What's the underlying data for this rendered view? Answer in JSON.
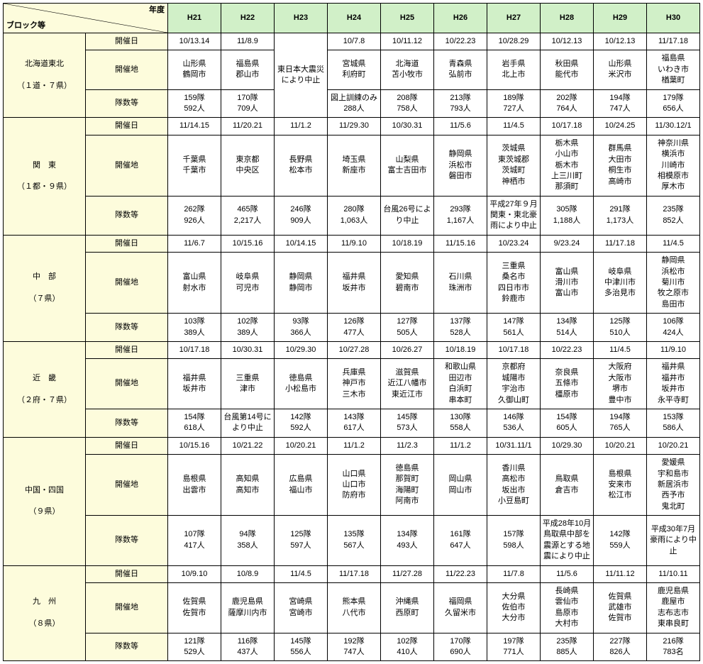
{
  "corner": {
    "top": "年度",
    "bottom": "ブロック等"
  },
  "years": [
    "H21",
    "H22",
    "H23",
    "H24",
    "H25",
    "H26",
    "H27",
    "H28",
    "H29",
    "H30"
  ],
  "rowLabels": [
    "開催日",
    "開催地",
    "隊数等"
  ],
  "blocks": [
    {
      "name": "北海道東北\n\n（１道・７県）",
      "merge23": true,
      "merge23Text": "東日本大震災により中止",
      "dates": [
        "10/13.14",
        "11/8.9",
        "",
        "10/7.8",
        "10/11.12",
        "10/22.23",
        "10/28.29",
        "10/12.13",
        "10/12.13",
        "11/17.18"
      ],
      "places": [
        "山形県\n鶴岡市",
        "福島県\n郡山市",
        "",
        "宮城県\n利府町",
        "北海道\n苫小牧市",
        "青森県\n弘前市",
        "岩手県\n北上市",
        "秋田県\n能代市",
        "山形県\n米沢市",
        "福島県\nいわき市\n楢葉町"
      ],
      "units": [
        "159隊\n592人",
        "170隊\n709人",
        "",
        "図上訓練のみ\n288人",
        "208隊\n758人",
        "213隊\n793人",
        "189隊\n727人",
        "202隊\n764人",
        "194隊\n747人",
        "179隊\n656人"
      ]
    },
    {
      "name": "関　東\n\n（１都・９県）",
      "dates": [
        "11/14.15",
        "11/20.21",
        "11/1.2",
        "11/29.30",
        "10/30.31",
        "11/5.6",
        "11/4.5",
        "10/17.18",
        "10/24.25",
        "11/30.12/1"
      ],
      "places": [
        "千葉県\n千葉市",
        "東京都\n中央区",
        "長野県\n松本市",
        "埼玉県\n新座市",
        "山梨県\n富士吉田市",
        "静岡県\n浜松市\n磐田市",
        "茨城県\n東茨城郡\n茨城町\n神栖市",
        "栃木県\n小山市\n栃木市\n上三川町\n那須町",
        "群馬県\n大田市\n桐生市\n高崎市",
        "神奈川県\n横浜市\n川崎市\n相模原市\n厚木市"
      ],
      "units": [
        "262隊\n926人",
        "465隊\n2,217人",
        "246隊\n909人",
        "280隊\n1,063人",
        "台風26号により中止",
        "293隊\n1,167人",
        "平成27年９月関東・東北豪雨により中止",
        "305隊\n1,188人",
        "291隊\n1,173人",
        "235隊\n852人"
      ]
    },
    {
      "name": "中　部\n\n（７県）",
      "dates": [
        "11/6.7",
        "10/15.16",
        "10/14.15",
        "11/9.10",
        "10/18.19",
        "11/15.16",
        "10/23.24",
        "9/23.24",
        "11/17.18",
        "11/4.5"
      ],
      "places": [
        "富山県\n射水市",
        "岐阜県\n可児市",
        "静岡県\n静岡市",
        "福井県\n坂井市",
        "愛知県\n碧南市",
        "石川県\n珠洲市",
        "三重県\n桑名市\n四日市市\n鈴鹿市",
        "富山県\n滑川市\n富山市",
        "岐阜県\n中津川市\n多治見市",
        "静岡県\n浜松市\n菊川市\n牧之原市\n島田市"
      ],
      "units": [
        "103隊\n389人",
        "102隊\n389人",
        "93隊\n366人",
        "126隊\n477人",
        "127隊\n505人",
        "137隊\n528人",
        "147隊\n561人",
        "134隊\n514人",
        "125隊\n510人",
        "106隊\n424人"
      ]
    },
    {
      "name": "近　畿\n\n（２府・７県）",
      "dates": [
        "10/17.18",
        "10/30.31",
        "10/29.30",
        "10/27.28",
        "10/26.27",
        "10/18.19",
        "10/17.18",
        "10/22.23",
        "11/4.5",
        "11/9.10"
      ],
      "places": [
        "福井県\n坂井市",
        "三重県\n津市",
        "徳島県\n小松島市",
        "兵庫県\n神戸市\n三木市",
        "滋賀県\n近江八幡市\n東近江市",
        "和歌山県\n田辺市\n白浜町\n串本町",
        "京都府\n城陽市\n宇治市\n久御山町",
        "奈良県\n五條市\n橿原市",
        "大阪府\n大阪市\n堺市\n豊中市",
        "福井県\n福井市\n坂井市\n永平寺町"
      ],
      "units": [
        "154隊\n618人",
        "台風第14号により中止",
        "142隊\n592人",
        "143隊\n617人",
        "145隊\n573人",
        "130隊\n558人",
        "146隊\n536人",
        "154隊\n605人",
        "194隊\n765人",
        "153隊\n586人"
      ]
    },
    {
      "name": "中国・四国\n\n（９県）",
      "dates": [
        "10/15.16",
        "10/21.22",
        "10/20.21",
        "11/1.2",
        "11/2.3",
        "11/1.2",
        "10/31.11/1",
        "10/29.30",
        "10/20.21",
        "10/20.21"
      ],
      "places": [
        "島根県\n出雲市",
        "高知県\n高知市",
        "広島県\n福山市",
        "山口県\n山口市\n防府市",
        "徳島県\n那賀町\n海陽町\n阿南市",
        "岡山県\n岡山市",
        "香川県\n高松市\n坂出市\n小豆島町",
        "鳥取県\n倉吉市",
        "島根県\n安来市\n松江市",
        "愛媛県\n宇和島市\n新居浜市\n西予市\n鬼北町"
      ],
      "units": [
        "107隊\n417人",
        "94隊\n358人",
        "125隊\n597人",
        "135隊\n567人",
        "134隊\n493人",
        "161隊\n647人",
        "157隊\n598人",
        "平成28年10月鳥取県中部を震源とする地震により中止",
        "142隊\n559人",
        "平成30年7月豪雨により中止"
      ]
    },
    {
      "name": "九　州\n\n（８県）",
      "dates": [
        "10/9.10",
        "10/8.9",
        "11/4.5",
        "11/17.18",
        "11/27.28",
        "11/22.23",
        "11/7.8",
        "11/5.6",
        "11/11.12",
        "11/10.11"
      ],
      "places": [
        "佐賀県\n佐賀市",
        "鹿児島県\n薩摩川内市",
        "宮崎県\n宮崎市",
        "熊本県\n八代市",
        "沖縄県\n西原町",
        "福岡県\n久留米市",
        "大分県\n佐伯市\n大分市",
        "長崎県\n雲仙市\n島原市\n大村市",
        "佐賀県\n武雄市\n佐賀市",
        "鹿児島県\n鹿屋市\n志布志市\n東串良町"
      ],
      "units": [
        "121隊\n529人",
        "116隊\n437人",
        "145隊\n556人",
        "192隊\n747人",
        "102隊\n410人",
        "170隊\n690人",
        "197隊\n771人",
        "235隊\n885人",
        "227隊\n826人",
        "216隊\n783名"
      ]
    }
  ],
  "colors": {
    "yearHead": "#d1f0c8",
    "blockCol": "#fdfcdc",
    "border": "#000000",
    "bg": "#ffffff"
  },
  "typography": {
    "fontSize": 11
  }
}
